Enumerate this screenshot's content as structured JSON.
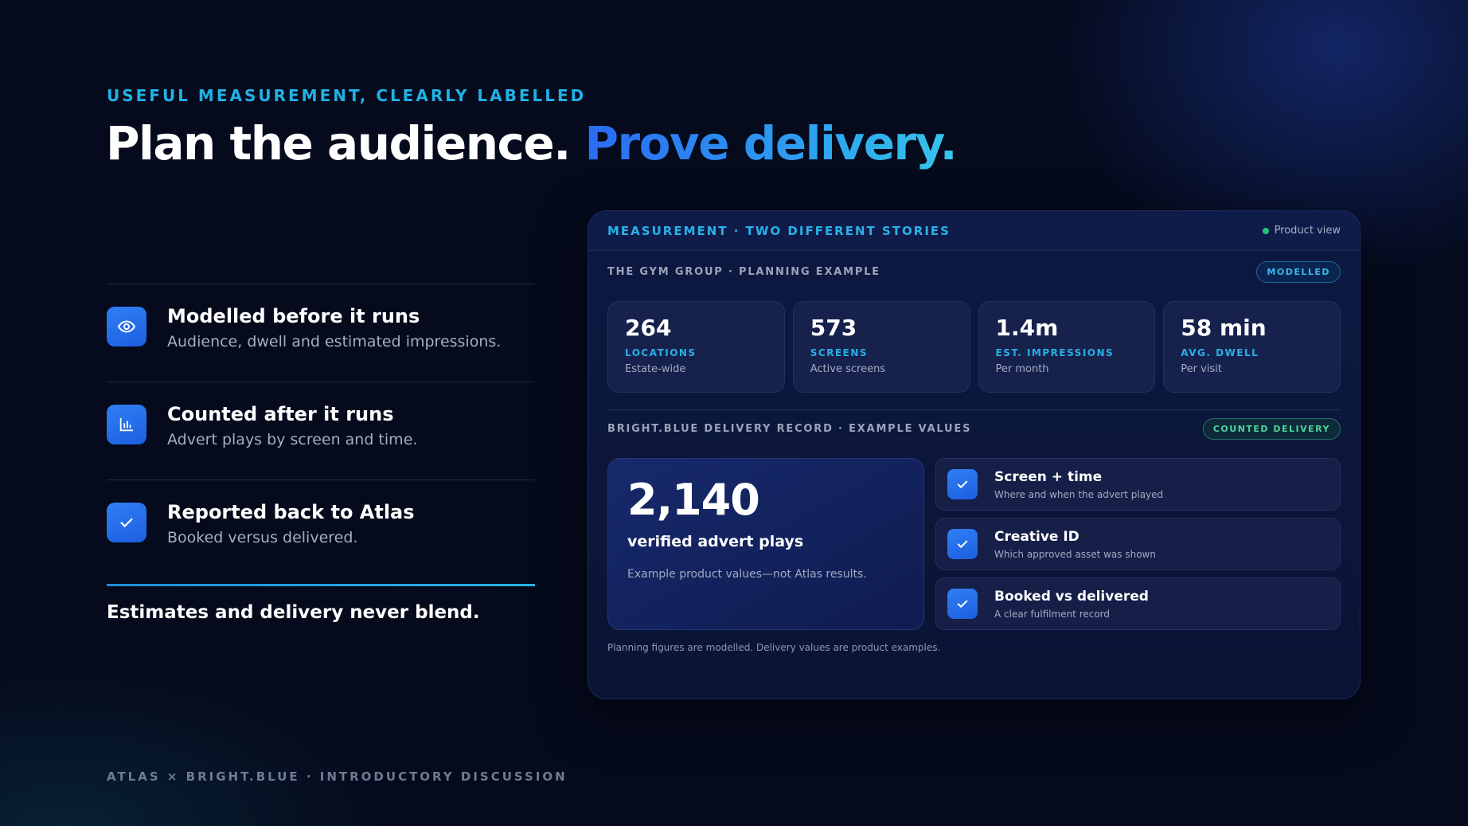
{
  "eyebrow": "USEFUL MEASUREMENT, CLEARLY LABELLED",
  "headline": {
    "lead": "Plan the audience.",
    "accent": "Prove delivery."
  },
  "features": [
    {
      "icon": "eye-icon",
      "title": "Modelled before it runs",
      "desc": "Audience, dwell and estimated impressions."
    },
    {
      "icon": "bar-chart-icon",
      "title": "Counted after it runs",
      "desc": "Advert plays by screen and time."
    },
    {
      "icon": "check-icon",
      "title": "Reported back to Atlas",
      "desc": "Booked versus delivered."
    }
  ],
  "closing": "Estimates and delivery never blend.",
  "footer": "ATLAS × BRIGHT.BLUE · INTRODUCTORY DISCUSSION",
  "panel": {
    "title": "MEASUREMENT · TWO DIFFERENT STORIES",
    "status": "Product view",
    "status_color": "#23c47a",
    "planning": {
      "label": "THE GYM GROUP · PLANNING EXAMPLE",
      "badge": "MODELLED",
      "stats": [
        {
          "value": "264",
          "label": "LOCATIONS",
          "sub": "Estate-wide"
        },
        {
          "value": "573",
          "label": "SCREENS",
          "sub": "Active screens"
        },
        {
          "value": "1.4m",
          "label": "EST. IMPRESSIONS",
          "sub": "Per month"
        },
        {
          "value": "58 min",
          "label": "AVG. DWELL",
          "sub": "Per visit"
        }
      ]
    },
    "delivery": {
      "label": "BRIGHT.BLUE DELIVERY RECORD · EXAMPLE VALUES",
      "badge": "COUNTED DELIVERY",
      "big_value": "2,140",
      "big_label": "verified advert plays",
      "big_note": "Example product values—not Atlas results.",
      "checks": [
        {
          "title": "Screen + time",
          "desc": "Where and when the advert played"
        },
        {
          "title": "Creative ID",
          "desc": "Which approved asset was shown"
        },
        {
          "title": "Booked vs delivered",
          "desc": "A clear fulfilment record"
        }
      ]
    },
    "footnote": "Planning figures are modelled. Delivery values are product examples."
  },
  "colors": {
    "accent": "#27b2e8",
    "brand_blue": "#2a6af2",
    "background": "#050a1c",
    "counted": "#4fd49b"
  }
}
